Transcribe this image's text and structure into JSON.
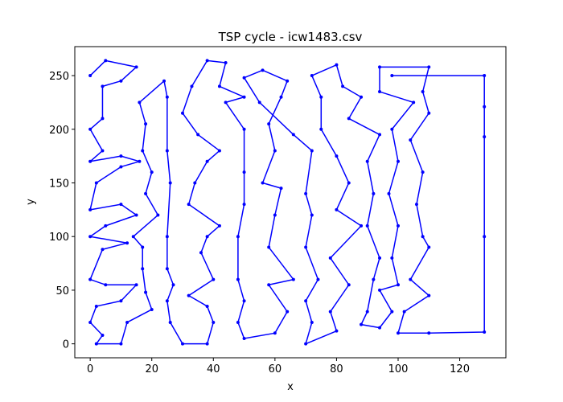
{
  "chart_data": {
    "type": "line",
    "title": "TSP cycle - icw1483.csv",
    "x_label": "x",
    "y_label": "y",
    "color": "#0000ff",
    "markers": true,
    "x": [
      0,
      5,
      15,
      10,
      4,
      4,
      0,
      4,
      0,
      10,
      16,
      10,
      2,
      0,
      10,
      15,
      5,
      0,
      12,
      4,
      0,
      5,
      15,
      10,
      2,
      0,
      4,
      2,
      10,
      12,
      20,
      18,
      17,
      17,
      14,
      22,
      18,
      20,
      17,
      18,
      16,
      24,
      25,
      25,
      26,
      25,
      25,
      27,
      25,
      26,
      30,
      38,
      40,
      38,
      32,
      40,
      36,
      38,
      42,
      32,
      34,
      38,
      42,
      35,
      30,
      33,
      38,
      44,
      42,
      50,
      44,
      50,
      50,
      50,
      48,
      48,
      50,
      48,
      50,
      60,
      64,
      58,
      66,
      58,
      60,
      62,
      56,
      60,
      58,
      62,
      64,
      56,
      50,
      55,
      66,
      72,
      70,
      72,
      70,
      74,
      70,
      72,
      70,
      80,
      78,
      84,
      78,
      88,
      80,
      84,
      80,
      75,
      75,
      72,
      80,
      82,
      88,
      84,
      94,
      90,
      92,
      90,
      94,
      92,
      90,
      88,
      94,
      98,
      94,
      100,
      98,
      100,
      97,
      100,
      98,
      105,
      94,
      94,
      110,
      108,
      110,
      104,
      108,
      106,
      108,
      110,
      104,
      110,
      102,
      100,
      110,
      128,
      128,
      128,
      128,
      128,
      98
    ],
    "values": [
      250,
      264,
      258,
      245,
      240,
      210,
      200,
      180,
      170,
      175,
      170,
      165,
      150,
      125,
      130,
      120,
      110,
      100,
      94,
      88,
      60,
      55,
      55,
      40,
      35,
      20,
      8,
      0,
      0,
      20,
      32,
      48,
      70,
      90,
      100,
      120,
      140,
      160,
      180,
      205,
      225,
      245,
      230,
      180,
      150,
      100,
      70,
      55,
      40,
      20,
      0,
      0,
      20,
      35,
      45,
      60,
      85,
      100,
      110,
      130,
      150,
      170,
      180,
      195,
      215,
      240,
      264,
      262,
      240,
      230,
      225,
      200,
      160,
      130,
      100,
      60,
      40,
      20,
      5,
      10,
      30,
      55,
      60,
      90,
      120,
      145,
      150,
      180,
      205,
      230,
      245,
      255,
      248,
      225,
      195,
      180,
      140,
      120,
      90,
      60,
      40,
      20,
      0,
      12,
      30,
      55,
      80,
      110,
      125,
      150,
      175,
      200,
      230,
      250,
      260,
      240,
      230,
      210,
      195,
      170,
      140,
      110,
      80,
      60,
      30,
      18,
      15,
      30,
      50,
      55,
      80,
      110,
      140,
      170,
      200,
      225,
      235,
      258,
      258,
      235,
      215,
      190,
      160,
      130,
      100,
      90,
      60,
      45,
      30,
      10,
      10,
      11,
      100,
      193,
      221,
      250,
      250
    ],
    "xlim": [
      -5,
      135
    ],
    "ylim": [
      -13,
      277
    ],
    "xticks": [
      0,
      20,
      40,
      60,
      80,
      100,
      120
    ],
    "yticks": [
      0,
      50,
      100,
      150,
      200,
      250
    ]
  }
}
